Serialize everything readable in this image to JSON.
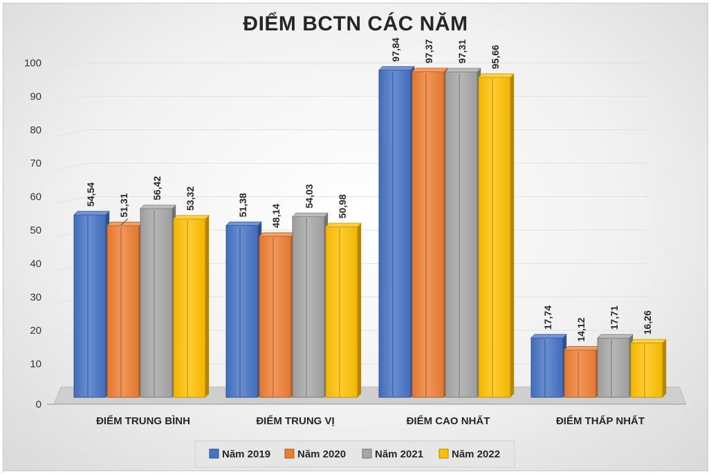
{
  "chart_data": {
    "type": "bar",
    "title": "ĐIỂM BCTN CÁC NĂM",
    "categories": [
      "ĐIỂM TRUNG BÌNH",
      "ĐIỂM TRUNG VỊ",
      "ĐIỂM CAO NHẤT",
      "ĐIỂM THẤP NHẤT"
    ],
    "series": [
      {
        "name": "Năm 2019",
        "values": [
          54.54,
          51.38,
          97.84,
          17.74
        ],
        "labels": [
          "54,54",
          "51,38",
          "97,84",
          "17,74"
        ],
        "color": "#4472C4"
      },
      {
        "name": "Năm 2020",
        "values": [
          51.31,
          48.14,
          97.37,
          14.12
        ],
        "labels": [
          "51,31",
          "48,14",
          "97,37",
          "14,12"
        ],
        "color": "#ED7D31"
      },
      {
        "name": "Năm 2021",
        "values": [
          56.42,
          54.03,
          97.31,
          17.71
        ],
        "labels": [
          "56,42",
          "54,03",
          "97,31",
          "17,71"
        ],
        "color": "#A5A5A5"
      },
      {
        "name": "Năm 2022",
        "values": [
          53.32,
          50.98,
          95.66,
          16.26
        ],
        "labels": [
          "53,32",
          "50,98",
          "95,66",
          "16,26"
        ],
        "color": "#FFC000"
      }
    ],
    "ylim": [
      0,
      100
    ],
    "yticks": [
      0,
      10,
      20,
      30,
      40,
      50,
      60,
      70,
      80,
      90,
      100
    ],
    "grid": true,
    "legend": "bottom",
    "style": "3d-clustered-column"
  }
}
